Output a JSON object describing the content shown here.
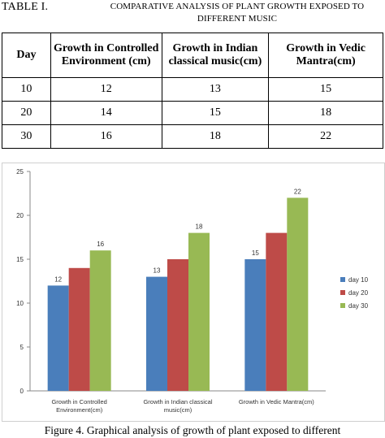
{
  "table": {
    "label": "TABLE I.",
    "title": "Comparative analysis of plant growth exposed to different music",
    "headers": [
      "Day",
      "Growth in Controlled Environment (cm)",
      "Growth in Indian classical music(cm)",
      "Growth in Vedic Mantra(cm)"
    ],
    "rows": [
      [
        "10",
        "12",
        "13",
        "15"
      ],
      [
        "20",
        "14",
        "15",
        "18"
      ],
      [
        "30",
        "16",
        "18",
        "22"
      ]
    ]
  },
  "chart_data": {
    "type": "bar",
    "categories": [
      "Growth in Controlled Environment(cm)",
      "Growth in Indian classical music(cm)",
      "Growth in Vedic Mantra(cm)"
    ],
    "category_lines": [
      [
        "Growth in Controlled",
        "Environment(cm)"
      ],
      [
        "Growth in Indian classical",
        "music(cm)"
      ],
      [
        "Growth in Vedic Mantra(cm)"
      ]
    ],
    "series": [
      {
        "name": "day 10",
        "values": [
          12,
          13,
          15
        ],
        "color": "#4a7ebb"
      },
      {
        "name": "day 20",
        "values": [
          14,
          15,
          18
        ],
        "color": "#be4b48"
      },
      {
        "name": "day 30",
        "values": [
          16,
          18,
          22
        ],
        "color": "#98b954"
      }
    ],
    "ylim": [
      0,
      25
    ],
    "yticks": [
      0,
      5,
      10,
      15,
      20,
      25
    ],
    "grid": false,
    "legend": "right",
    "data_labels": "day 10 and day 30 bars only"
  },
  "figure": {
    "caption": "Figure 4.    Graphical analysis of growth of plant exposed to different"
  }
}
